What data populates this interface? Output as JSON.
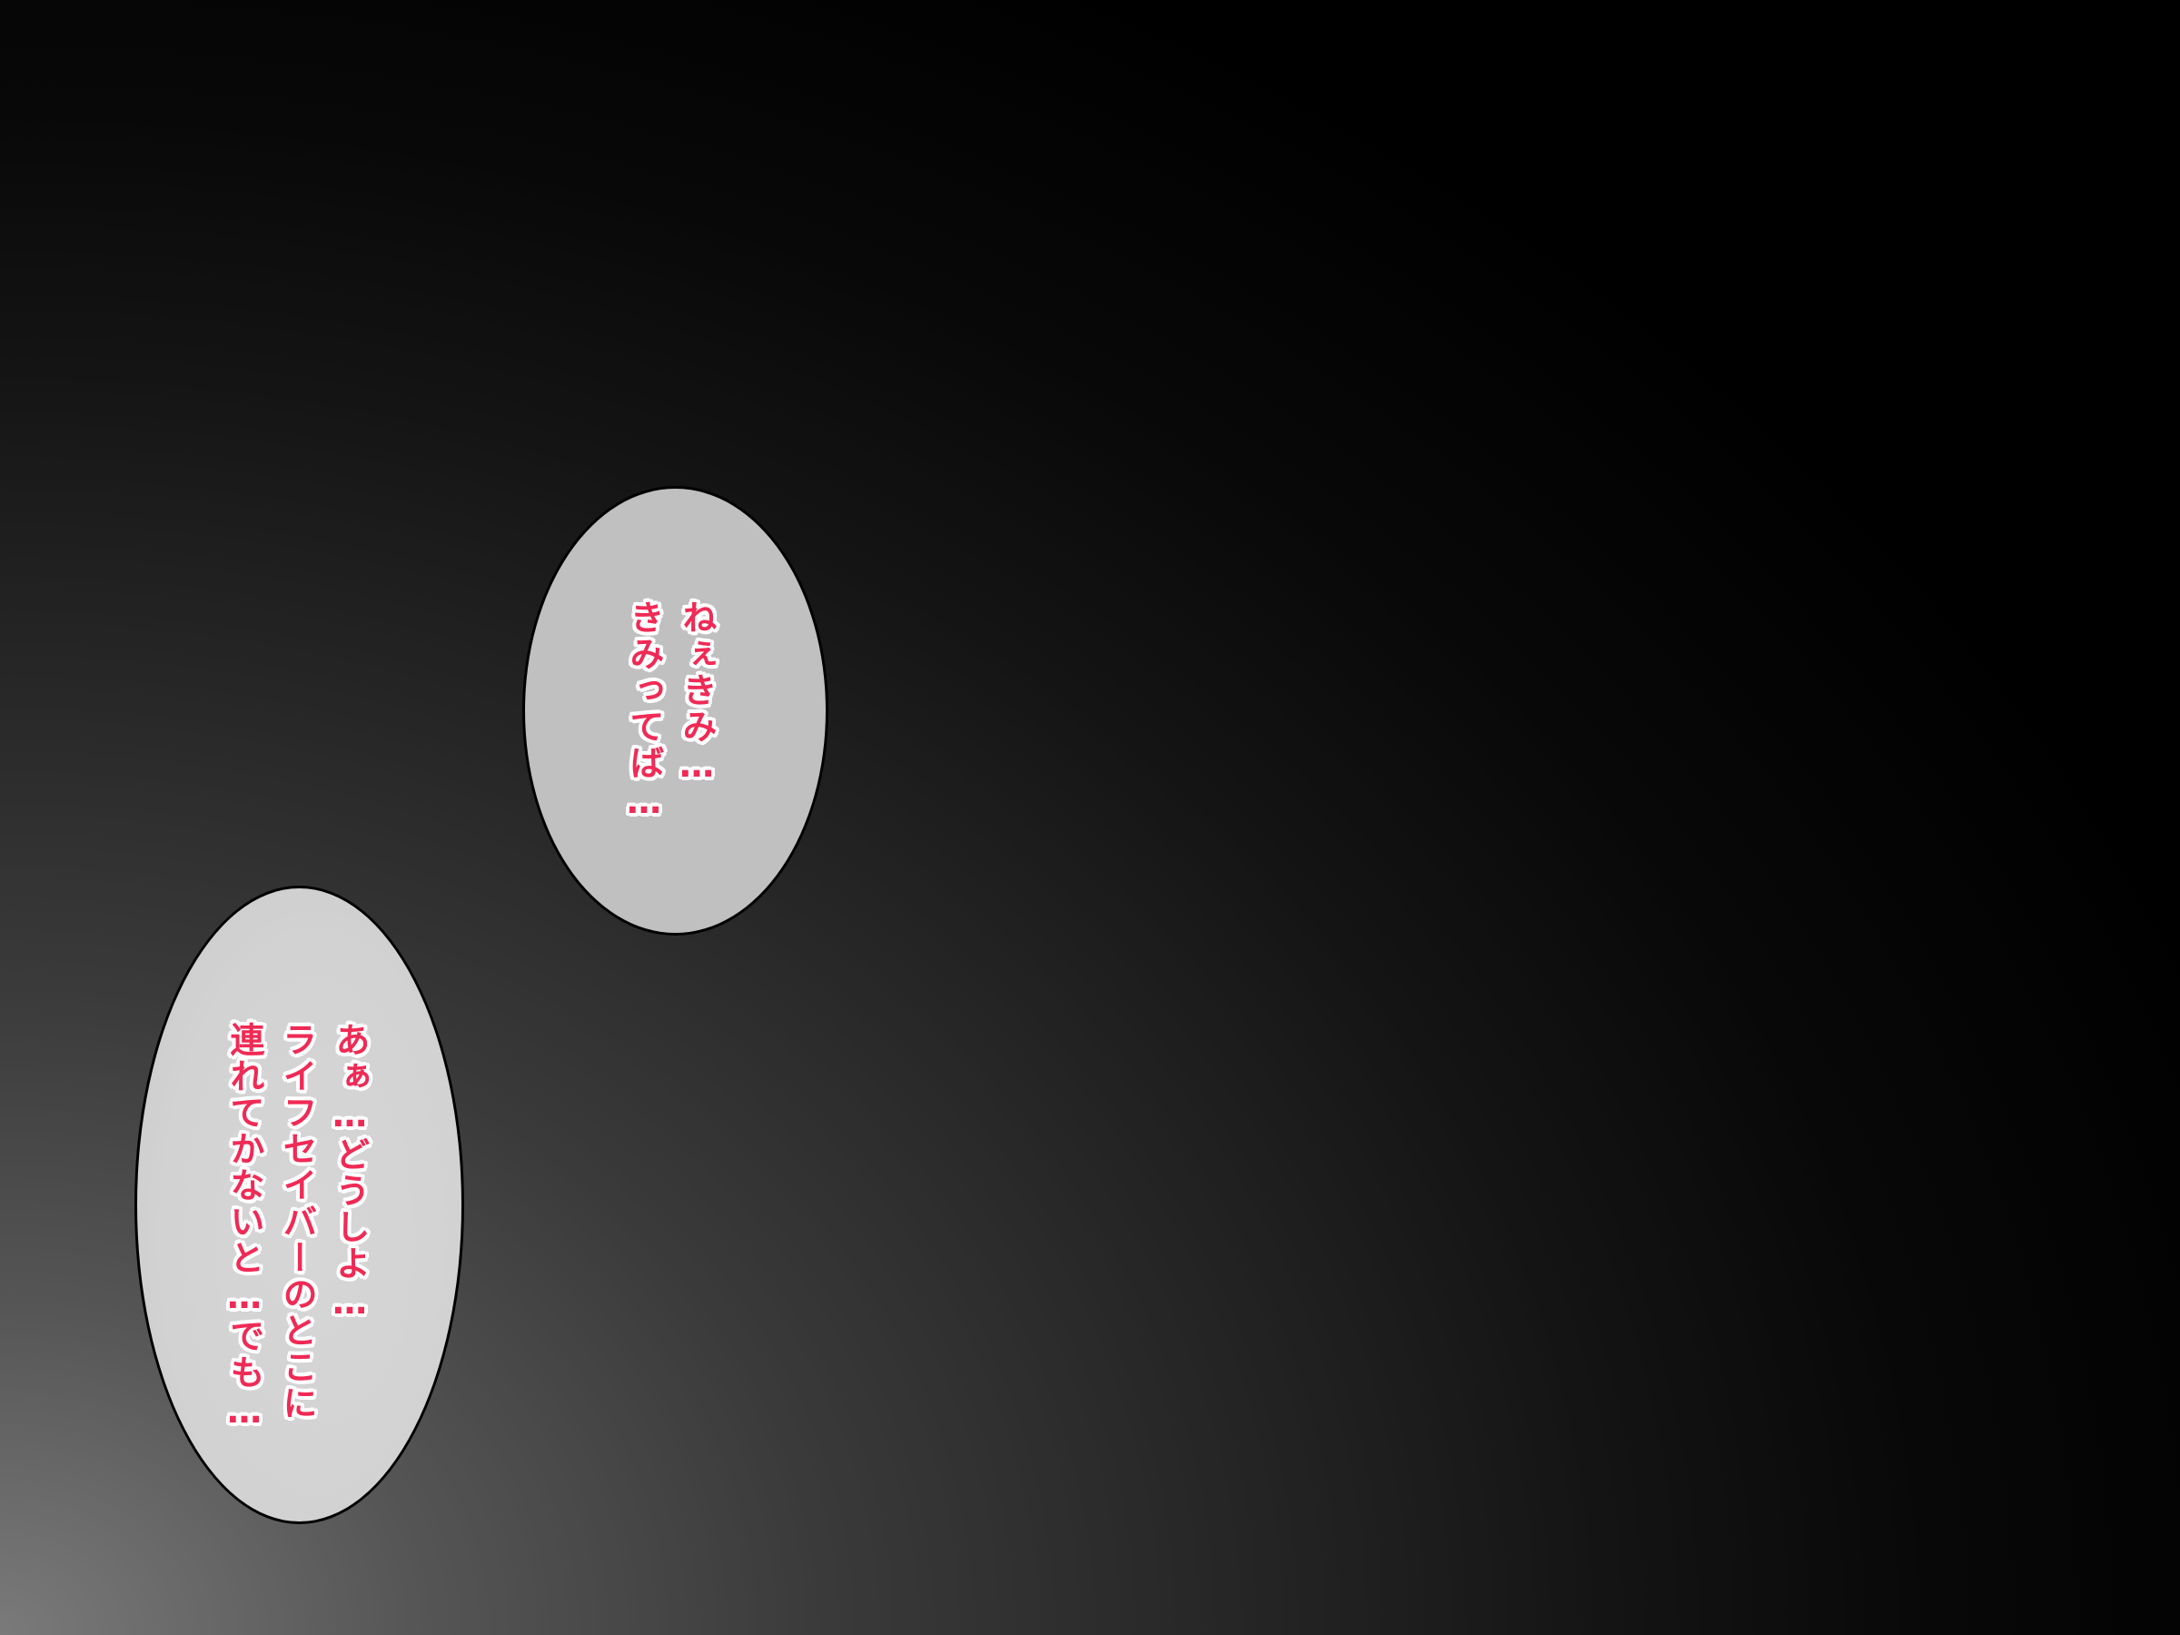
{
  "bubbles": {
    "top": {
      "lines": [
        "ねぇきみ…",
        "きみってば…"
      ]
    },
    "bottom": {
      "lines": [
        "あぁ…どうしよ…",
        "ライフセイバーのとこに",
        "連れてかないと…でも…"
      ]
    }
  },
  "colors": {
    "text": "#f02a55",
    "text_outline": "#ffffff",
    "bubble_top_fill": "#c0c0c0",
    "bubble_bottom_fill": "#d2d2d2",
    "background_dark": "#000000",
    "background_light": "#7a7a7a"
  }
}
